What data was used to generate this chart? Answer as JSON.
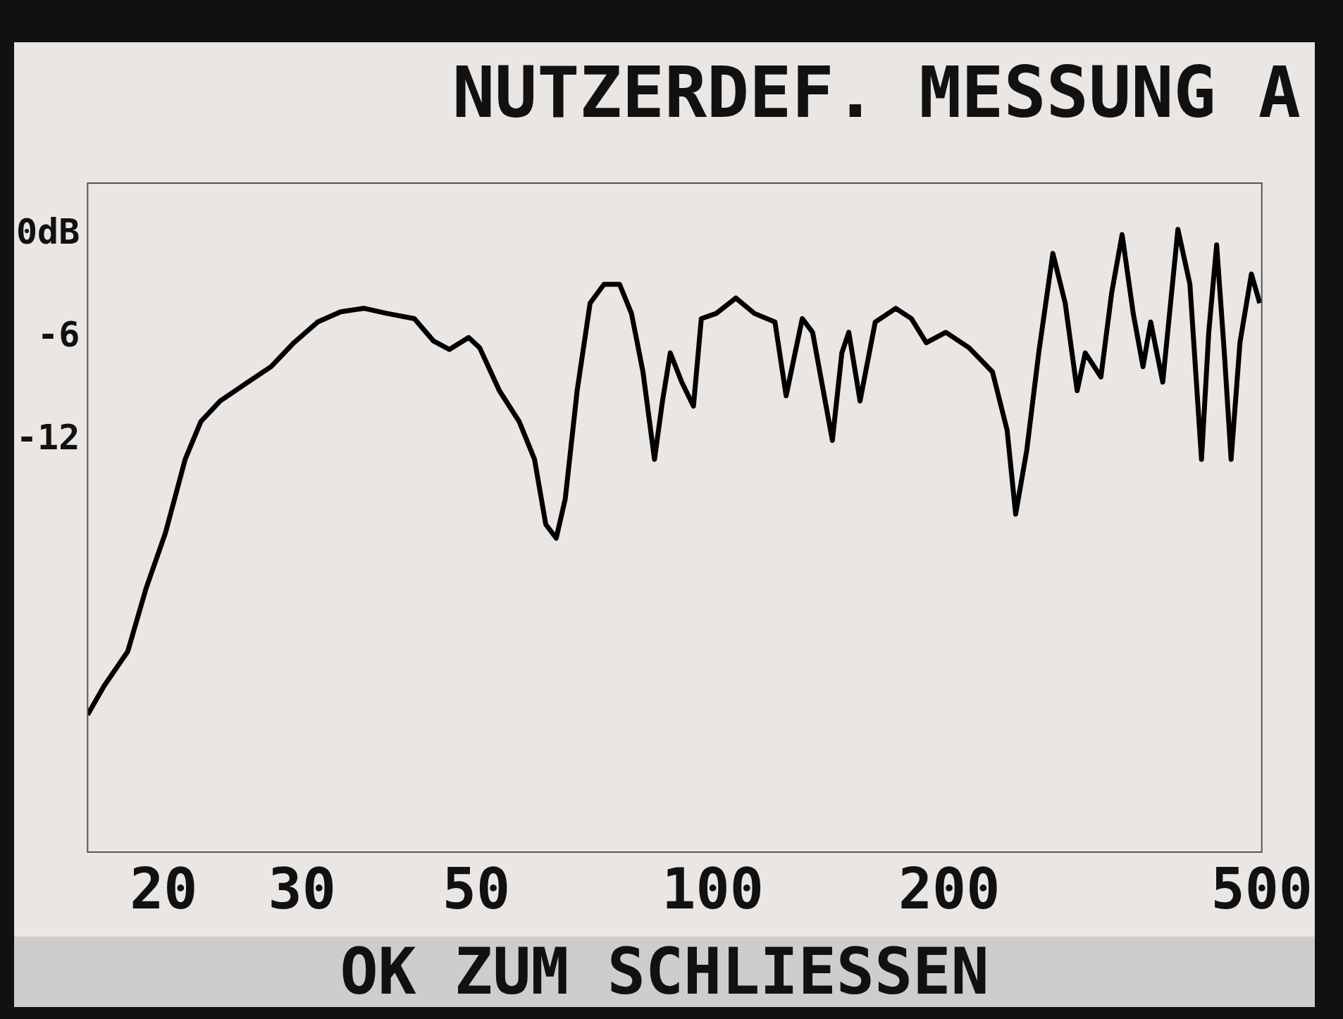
{
  "chart_data": {
    "type": "line",
    "title": "NUTZERDEF. MESSUNG A",
    "annotations": [
      "OK ZUM SCHLIESSEN"
    ],
    "log": "x",
    "xlim": [
      16,
      500
    ],
    "xticks": [
      20,
      30,
      50,
      100,
      200,
      500
    ],
    "ylim": [
      -36,
      3
    ],
    "yticks": [
      {
        "value": 0,
        "label": "0dB"
      },
      -6,
      -12
    ],
    "marker": "none",
    "line_style": "solid",
    "series": [
      {
        "color": "#000000",
        "x": [
          16,
          16.8,
          18,
          19,
          20.1,
          21.3,
          22.3,
          23.6,
          25.6,
          27.4,
          29.3,
          31.4,
          33.6,
          36,
          38.5,
          41.7,
          44.1,
          46.2,
          48.9,
          50.5,
          53.5,
          56.7,
          59.3,
          61.3,
          63.2,
          64.9,
          67.2,
          69.8,
          72.7,
          76.1,
          78.8,
          81.5,
          84.3,
          86.3,
          88.3,
          91.3,
          94.5,
          96.7,
          101,
          107,
          113,
          120,
          124,
          130,
          134,
          142,
          146,
          149,
          154,
          161,
          171,
          179,
          187,
          198,
          212,
          227,
          237,
          243,
          251,
          260,
          271,
          281,
          291,
          298,
          312,
          322,
          332,
          343,
          353,
          361,
          374,
          391,
          405,
          419,
          428,
          438,
          448,
          457,
          469,
          485,
          497
        ],
        "values": [
          -28,
          -26.3,
          -24.3,
          -20.6,
          -17.4,
          -13.1,
          -10.9,
          -9.7,
          -8.6,
          -7.7,
          -6.3,
          -5.1,
          -4.5,
          -4.3,
          -4.6,
          -4.9,
          -6.2,
          -6.7,
          -6,
          -6.6,
          -9.1,
          -10.9,
          -13.1,
          -16.9,
          -17.7,
          -15.4,
          -9.1,
          -4,
          -2.9,
          -2.9,
          -4.6,
          -8,
          -13.1,
          -9.7,
          -6.9,
          -8.6,
          -10,
          -4.9,
          -4.6,
          -3.7,
          -4.6,
          -5.1,
          -9.4,
          -4.9,
          -5.7,
          -12,
          -6.9,
          -5.7,
          -9.7,
          -5.1,
          -4.3,
          -4.9,
          -6.3,
          -5.7,
          -6.6,
          -8,
          -11.4,
          -16.3,
          -12.6,
          -6.9,
          -1.1,
          -4,
          -9.1,
          -6.9,
          -8.3,
          -3.4,
          0,
          -4.6,
          -7.7,
          -5.1,
          -8.6,
          0.3,
          -2.9,
          -13.1,
          -5.7,
          -0.6,
          -6.9,
          -13.1,
          -6.3,
          -2.3,
          -4
        ]
      }
    ]
  }
}
